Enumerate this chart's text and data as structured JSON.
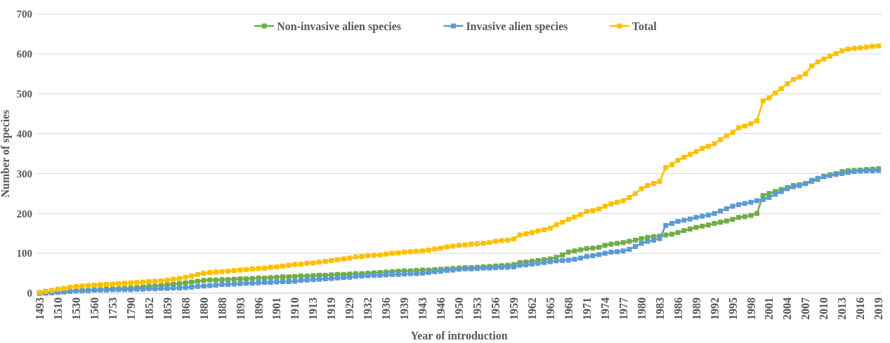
{
  "chart_data": {
    "type": "line",
    "xlabel": "Year of introduction",
    "ylabel": "Number of species",
    "categories": [
      "1493",
      null,
      null,
      "1510",
      null,
      null,
      "1530",
      null,
      null,
      "1560",
      null,
      null,
      "1753",
      null,
      null,
      "1790",
      null,
      null,
      "1852",
      null,
      null,
      "1859",
      null,
      null,
      "1868",
      null,
      null,
      "1880",
      null,
      null,
      "1888",
      null,
      null,
      "1893",
      null,
      null,
      "1896",
      null,
      null,
      "1901",
      null,
      null,
      "1910",
      null,
      null,
      "1913",
      null,
      null,
      "1919",
      null,
      null,
      "1929",
      null,
      null,
      "1932",
      null,
      null,
      "1936",
      null,
      null,
      "1939",
      null,
      null,
      "1943",
      null,
      null,
      "1946",
      null,
      null,
      "1950",
      null,
      null,
      "1953",
      null,
      null,
      "1956",
      null,
      null,
      "1959",
      null,
      null,
      "1962",
      null,
      null,
      "1965",
      null,
      null,
      "1968",
      null,
      null,
      "1971",
      null,
      null,
      "1974",
      null,
      null,
      "1977",
      null,
      null,
      "1980",
      null,
      null,
      "1983",
      null,
      null,
      "1986",
      null,
      null,
      "1989",
      null,
      null,
      "1992",
      null,
      null,
      "1995",
      null,
      null,
      "1998",
      null,
      null,
      "2001",
      null,
      null,
      "2004",
      null,
      null,
      "2007",
      null,
      null,
      "2010",
      null,
      null,
      "2013",
      null,
      null,
      "2016",
      null,
      null,
      "2019"
    ],
    "series": [
      {
        "name": "Non-invasive alien species",
        "color": "#70ad47",
        "values": [
          0,
          1,
          2,
          3,
          4,
          5,
          6,
          6,
          7,
          8,
          9,
          10,
          11,
          11,
          12,
          13,
          14,
          15,
          17,
          18,
          19,
          21,
          22,
          24,
          26,
          28,
          30,
          32,
          33,
          33,
          34,
          34,
          35,
          36,
          36,
          37,
          38,
          38,
          39,
          40,
          41,
          41,
          42,
          43,
          43,
          44,
          45,
          45,
          46,
          47,
          47,
          48,
          49,
          49,
          50,
          51,
          52,
          53,
          54,
          55,
          56,
          56,
          57,
          58,
          58,
          59,
          60,
          61,
          62,
          63,
          64,
          64,
          65,
          66,
          67,
          68,
          69,
          70,
          72,
          77,
          78,
          80,
          82,
          84,
          86,
          90,
          96,
          103,
          106,
          109,
          112,
          113,
          115,
          120,
          123,
          125,
          127,
          130,
          133,
          137,
          140,
          142,
          143,
          146,
          148,
          152,
          157,
          161,
          165,
          168,
          171,
          175,
          178,
          181,
          185,
          190,
          192,
          195,
          200,
          245,
          250,
          255,
          260,
          265,
          270,
          272,
          275,
          280,
          285,
          293,
          297,
          300,
          305,
          307,
          308,
          309,
          310,
          311,
          312
        ]
      },
      {
        "name": "Invasive alien species",
        "color": "#5b9bd5",
        "values": [
          0,
          0,
          1,
          2,
          3,
          5,
          6,
          7,
          7,
          8,
          8,
          8,
          9,
          9,
          9,
          9,
          10,
          10,
          11,
          11,
          12,
          12,
          13,
          13,
          14,
          15,
          17,
          18,
          19,
          20,
          22,
          22,
          23,
          24,
          25,
          25,
          26,
          27,
          27,
          28,
          29,
          29,
          30,
          32,
          33,
          34,
          35,
          36,
          37,
          38,
          39,
          40,
          42,
          43,
          44,
          45,
          45,
          46,
          47,
          47,
          48,
          49,
          49,
          50,
          52,
          54,
          55,
          57,
          58,
          60,
          61,
          61,
          62,
          63,
          63,
          64,
          65,
          65,
          66,
          70,
          71,
          73,
          75,
          77,
          79,
          81,
          82,
          83,
          85,
          88,
          92,
          94,
          97,
          100,
          103,
          104,
          106,
          110,
          117,
          125,
          130,
          133,
          137,
          170,
          175,
          180,
          183,
          186,
          190,
          193,
          196,
          200,
          206,
          212,
          218,
          222,
          225,
          228,
          232,
          235,
          240,
          248,
          255,
          262,
          267,
          270,
          275,
          283,
          288,
          292,
          295,
          298,
          300,
          303,
          305,
          306,
          307,
          307,
          308
        ]
      },
      {
        "name": "Total",
        "color": "#ffc000",
        "values": [
          2,
          5,
          7,
          10,
          12,
          15,
          17,
          18,
          19,
          20,
          21,
          22,
          23,
          24,
          25,
          26,
          27,
          28,
          29,
          30,
          31,
          33,
          35,
          37,
          40,
          43,
          47,
          50,
          52,
          53,
          54,
          55,
          57,
          58,
          59,
          61,
          62,
          63,
          65,
          66,
          68,
          70,
          72,
          73,
          75,
          76,
          78,
          80,
          82,
          84,
          86,
          88,
          91,
          92,
          94,
          95,
          96,
          98,
          100,
          101,
          103,
          104,
          105,
          106,
          108,
          111,
          113,
          116,
          118,
          120,
          121,
          123,
          124,
          125,
          127,
          130,
          132,
          133,
          136,
          146,
          149,
          152,
          156,
          159,
          163,
          172,
          178,
          185,
          191,
          197,
          205,
          207,
          211,
          218,
          224,
          228,
          232,
          240,
          250,
          262,
          270,
          275,
          280,
          315,
          322,
          333,
          341,
          348,
          355,
          363,
          368,
          375,
          385,
          395,
          403,
          415,
          419,
          425,
          432,
          482,
          490,
          502,
          513,
          525,
          536,
          542,
          550,
          570,
          580,
          587,
          594,
          601,
          608,
          612,
          614,
          615,
          617,
          619,
          620
        ]
      }
    ],
    "ylim": [
      0,
      700
    ],
    "yticks": [
      0,
      100,
      200,
      300,
      400,
      500,
      600,
      700
    ],
    "grid": "y",
    "legend": "top",
    "marker": "square",
    "line_style": "solid"
  }
}
